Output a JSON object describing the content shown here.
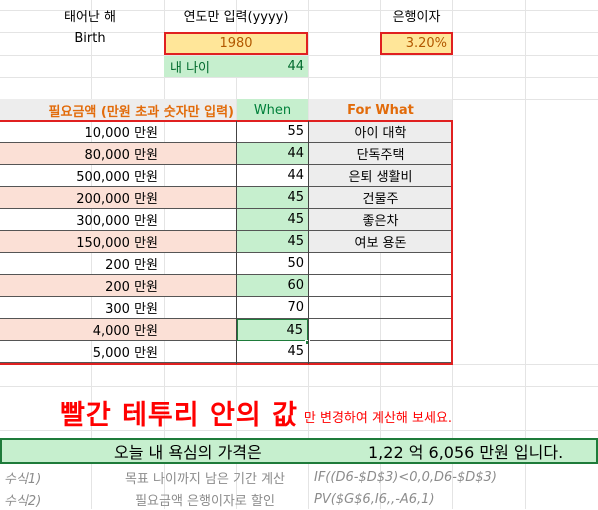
{
  "top": {
    "birth_label_ko": "태어난 해",
    "birth_label_en": "Birth",
    "year_label": "연도만 입력(yyyy)",
    "year_value": "1980",
    "age_label": "내 나이",
    "age_value": "44",
    "interest_label": "은행이자",
    "interest_value": "3.20%"
  },
  "table": {
    "headers": {
      "amount": "필요금액 (만원 초과 숫자만 입력)",
      "when": "When",
      "what": "For What"
    },
    "rows": [
      {
        "amount": "10,000 만원",
        "when": "55",
        "what": "아이 대학"
      },
      {
        "amount": "80,000 만원",
        "when": "44",
        "what": "단독주택"
      },
      {
        "amount": "500,000 만원",
        "when": "44",
        "what": "은퇴 생활비"
      },
      {
        "amount": "200,000 만원",
        "when": "45",
        "what": "건물주"
      },
      {
        "amount": "300,000 만원",
        "when": "45",
        "what": "좋은차"
      },
      {
        "amount": "150,000 만원",
        "when": "45",
        "what": "여보 용돈"
      },
      {
        "amount": "200 만원",
        "when": "50",
        "what": ""
      },
      {
        "amount": "200 만원",
        "when": "60",
        "what": ""
      },
      {
        "amount": "300 만원",
        "when": "70",
        "what": ""
      },
      {
        "amount": "4,000 만원",
        "when": "45",
        "what": ""
      },
      {
        "amount": "5,000 만원",
        "when": "45",
        "what": ""
      }
    ]
  },
  "notice": {
    "big": "빨간 테투리 안의 값",
    "small": "만 변경하여 계산해 보세요."
  },
  "result": {
    "label": "오늘 내 욕심의 가격은",
    "value": "1,22 억 6,056 만원 입니다."
  },
  "formulas": [
    {
      "name": "수식1)",
      "desc": "목표 나이까지 남은 기간 계산",
      "expr": "IF((D6-$D$3)<0,0,D6-$D$3)"
    },
    {
      "name": "수식2)",
      "desc": "필요금액 은행이자로 할인",
      "expr": "PV($G$6,I6,,-A6,1)"
    }
  ],
  "colors": {
    "red_border": "#e02020",
    "green_fill": "#c6efce",
    "pink_fill": "#fbe0d6",
    "yellow_fill": "#ffe699",
    "for_what_text": "#e26b0a",
    "when_text": "#00803a",
    "notice_text": "#ff0000"
  }
}
